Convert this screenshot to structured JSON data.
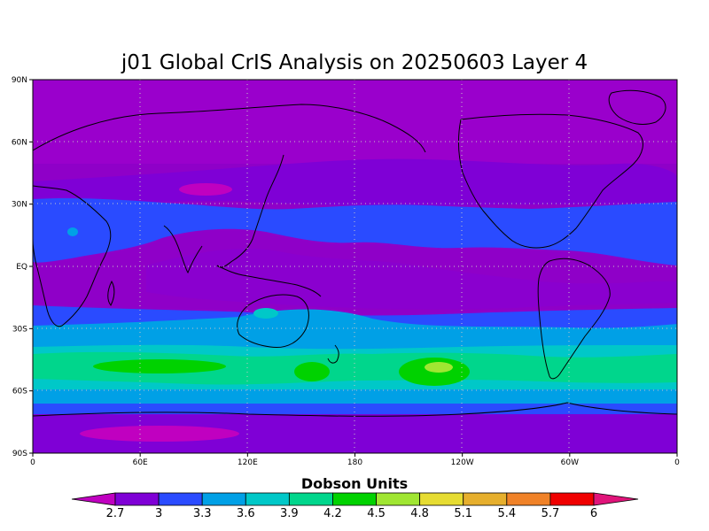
{
  "title": "j01 Global CrIS Analysis on 20250603 Layer 4",
  "x_ticks": [
    "0",
    "60E",
    "120E",
    "180",
    "120W",
    "60W",
    "0"
  ],
  "y_ticks": [
    "90N",
    "60N",
    "30N",
    "EQ",
    "30S",
    "60S",
    "90S"
  ],
  "colorbar": {
    "title": "Dobson Units",
    "labels": [
      "2.7",
      "3",
      "3.3",
      "3.6",
      "3.9",
      "4.2",
      "4.5",
      "4.8",
      "5.1",
      "5.4",
      "5.7",
      "6"
    ],
    "colors": [
      "#c000c0",
      "#7f00d6",
      "#2a4bff",
      "#00a0e6",
      "#00c8c8",
      "#00d68c",
      "#00d200",
      "#a0e632",
      "#e6dc32",
      "#e6af2d",
      "#f08228",
      "#f00000",
      "#e0147a"
    ]
  },
  "chart_data": {
    "type": "heatmap",
    "title": "j01 Global CrIS Analysis on 20250603 Layer 4",
    "units": "Dobson Units",
    "x_range": [
      0,
      360
    ],
    "y_range": [
      -90,
      90
    ],
    "grid": true,
    "bands": [
      {
        "lat": 90,
        "value": 2.8
      },
      {
        "lat": 60,
        "value": 2.9
      },
      {
        "lat": 45,
        "value": 3.0
      },
      {
        "lat": 30,
        "value": 3.2
      },
      {
        "lat": 15,
        "value": 3.15
      },
      {
        "lat": 0,
        "value": 2.95
      },
      {
        "lat": -15,
        "value": 3.1
      },
      {
        "lat": -28,
        "value": 3.4
      },
      {
        "lat": -35,
        "value": 3.7
      },
      {
        "lat": -42,
        "value": 4.0
      },
      {
        "lat": -50,
        "value": 4.25
      },
      {
        "lat": -58,
        "value": 3.8
      },
      {
        "lat": -65,
        "value": 3.2
      },
      {
        "lat": -72,
        "value": 2.95
      },
      {
        "lat": -90,
        "value": 2.8
      }
    ]
  }
}
